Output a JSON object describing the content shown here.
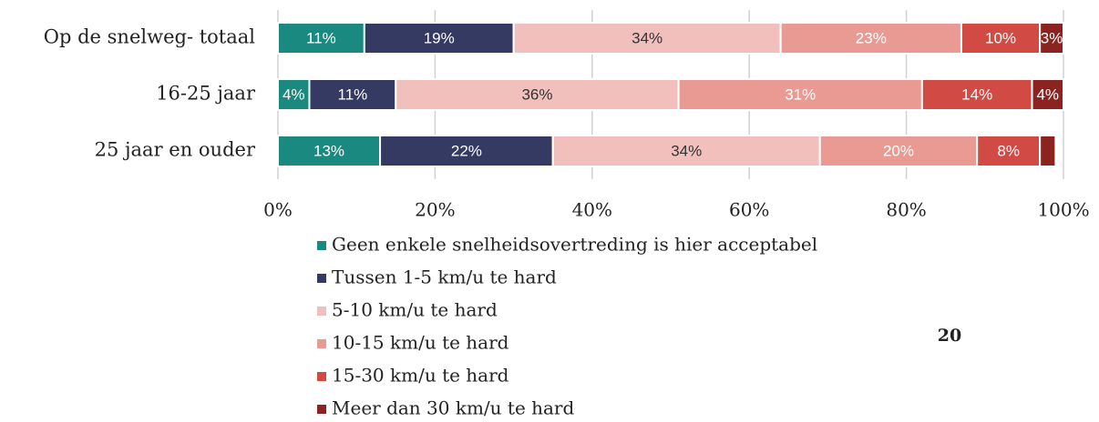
{
  "chart_data": {
    "type": "stacked_bar_horizontal",
    "categories": [
      "Op de snelweg- totaal",
      "16-25 jaar",
      "25 jaar en ouder"
    ],
    "series": [
      {
        "name": "Geen enkele snelheidsovertreding is hier acceptabel",
        "color": "#1a8a80",
        "label_color": "#ffffff",
        "values": [
          11,
          4,
          13
        ],
        "value_labels": [
          "11%",
          "4%",
          "13%"
        ]
      },
      {
        "name": "Tussen 1-5 km/u te hard",
        "color": "#353a63",
        "label_color": "#ffffff",
        "values": [
          19,
          11,
          22
        ],
        "value_labels": [
          "19%",
          "11%",
          "22%"
        ]
      },
      {
        "name": "5-10 km/u te hard",
        "color": "#f2c0bc",
        "label_color": "#333333",
        "values": [
          34,
          36,
          34
        ],
        "value_labels": [
          "34%",
          "36%",
          "34%"
        ]
      },
      {
        "name": "10-15 km/u te hard",
        "color": "#e89a93",
        "label_color": "#ffffff",
        "values": [
          23,
          31,
          20
        ],
        "value_labels": [
          "23%",
          "31%",
          "20%"
        ]
      },
      {
        "name": "15-30 km/u te hard",
        "color": "#d24a44",
        "label_color": "#ffffff",
        "values": [
          10,
          14,
          8
        ],
        "value_labels": [
          "10%",
          "14%",
          "8%"
        ]
      },
      {
        "name": "Meer dan 30 km/u te hard",
        "color": "#8b2420",
        "label_color": "#ffffff",
        "values": [
          3,
          4,
          2
        ],
        "value_labels": [
          "3%",
          "4%",
          null
        ]
      }
    ],
    "xlim": [
      0,
      100
    ],
    "xticks": [
      {
        "value": 0,
        "label": "0%"
      },
      {
        "value": 20,
        "label": "20%"
      },
      {
        "value": 40,
        "label": "40%"
      },
      {
        "value": 60,
        "label": "60%"
      },
      {
        "value": 80,
        "label": "80%"
      },
      {
        "value": 100,
        "label": "100%"
      }
    ],
    "grid": true
  },
  "page_number": "20"
}
